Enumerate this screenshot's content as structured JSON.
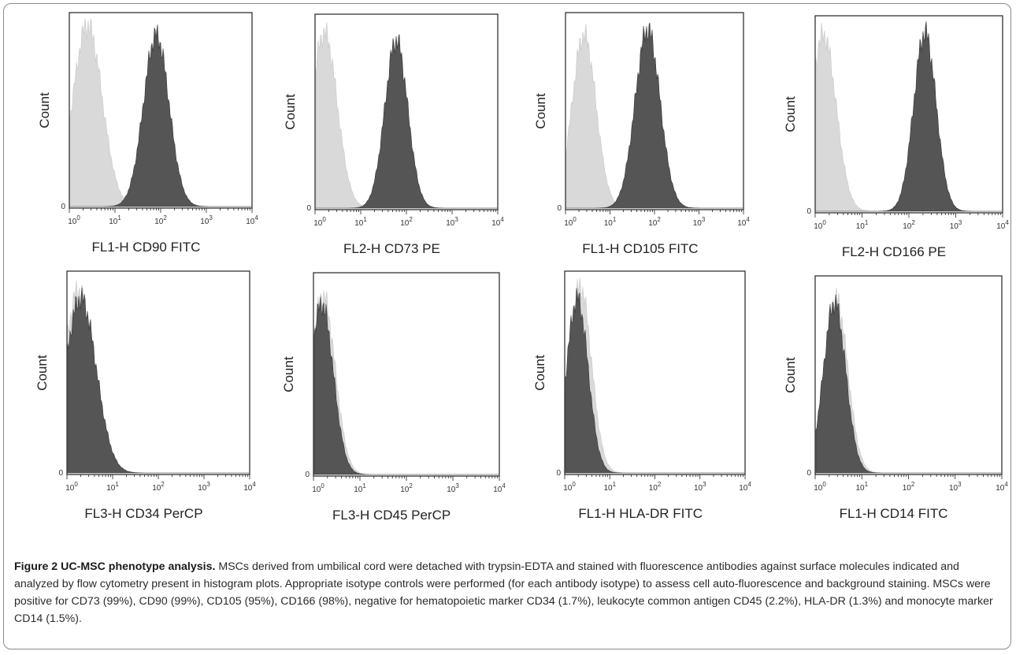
{
  "chart_data": [
    {
      "type": "area",
      "ylabel": "Count",
      "xlabel_channel": "FL1-H",
      "xlabel_marker": "CD90 FITC",
      "xscale": "log",
      "xlim": [
        1,
        10000
      ],
      "xticks": [
        "10^0",
        "10^1",
        "10^2",
        "10^3",
        "10^4"
      ],
      "ytick": "0",
      "series": [
        {
          "role": "isotype",
          "color": "#d9d9d9",
          "peak_x": 2.5,
          "width_decades": 0.32,
          "peak_height": 0.95
        },
        {
          "role": "stained",
          "color": "#555555",
          "peak_x": 80,
          "width_decades": 0.28,
          "peak_height": 0.9
        }
      ]
    },
    {
      "type": "area",
      "ylabel": "Count",
      "xlabel_channel": "FL2-H",
      "xlabel_marker": "CD73 PE",
      "xscale": "log",
      "xlim": [
        1,
        10000
      ],
      "xticks": [
        "10^0",
        "10^1",
        "10^2",
        "10^3",
        "10^4"
      ],
      "ytick": "0",
      "series": [
        {
          "role": "isotype",
          "color": "#d9d9d9",
          "peak_x": 1.6,
          "width_decades": 0.28,
          "peak_height": 0.92
        },
        {
          "role": "stained",
          "color": "#555555",
          "peak_x": 60,
          "width_decades": 0.25,
          "peak_height": 0.88
        }
      ]
    },
    {
      "type": "area",
      "ylabel": "Count",
      "xlabel_channel": "FL1-H",
      "xlabel_marker": "CD105 FITC",
      "xscale": "log",
      "xlim": [
        1,
        10000
      ],
      "xticks": [
        "10^0",
        "10^1",
        "10^2",
        "10^3",
        "10^4"
      ],
      "ytick": "0",
      "series": [
        {
          "role": "isotype",
          "color": "#d9d9d9",
          "peak_x": 2.6,
          "width_decades": 0.27,
          "peak_height": 0.9
        },
        {
          "role": "stained",
          "color": "#555555",
          "peak_x": 70,
          "width_decades": 0.28,
          "peak_height": 0.93
        }
      ]
    },
    {
      "type": "area",
      "ylabel": "Count",
      "xlabel_channel": "FL2-H",
      "xlabel_marker": "CD166 PE",
      "xscale": "log",
      "xlim": [
        1,
        10000
      ],
      "xticks": [
        "10^0",
        "10^1",
        "10^2",
        "10^3",
        "10^4"
      ],
      "ytick": "0",
      "series": [
        {
          "role": "isotype",
          "color": "#d9d9d9",
          "peak_x": 1.5,
          "width_decades": 0.27,
          "peak_height": 0.92
        },
        {
          "role": "stained",
          "color": "#555555",
          "peak_x": 220,
          "width_decades": 0.24,
          "peak_height": 0.93
        }
      ]
    },
    {
      "type": "area",
      "ylabel": "Count",
      "xlabel_channel": "FL3-H",
      "xlabel_marker": "CD34 PerCP",
      "xscale": "log",
      "xlim": [
        1,
        10000
      ],
      "xticks": [
        "10^0",
        "10^1",
        "10^2",
        "10^3",
        "10^4"
      ],
      "ytick": "0",
      "series": [
        {
          "role": "isotype",
          "color": "#d9d9d9",
          "peak_x": 1.8,
          "width_decades": 0.32,
          "peak_height": 0.92
        },
        {
          "role": "stained",
          "color": "#555555",
          "peak_x": 2.0,
          "width_decades": 0.34,
          "peak_height": 0.88
        }
      ]
    },
    {
      "type": "area",
      "ylabel": "Count",
      "xlabel_channel": "FL3-H",
      "xlabel_marker": "CD45 PerCP",
      "xscale": "log",
      "xlim": [
        1,
        10000
      ],
      "xticks": [
        "10^0",
        "10^1",
        "10^2",
        "10^3",
        "10^4"
      ],
      "ytick": "0",
      "series": [
        {
          "role": "isotype",
          "color": "#d9d9d9",
          "peak_x": 1.6,
          "width_decades": 0.26,
          "peak_height": 0.9
        },
        {
          "role": "stained",
          "color": "#555555",
          "peak_x": 1.5,
          "width_decades": 0.25,
          "peak_height": 0.86
        }
      ]
    },
    {
      "type": "area",
      "ylabel": "Count",
      "xlabel_channel": "FL1-H",
      "xlabel_marker": "HLA-DR FITC",
      "xscale": "log",
      "xlim": [
        1,
        10000
      ],
      "xticks": [
        "10^0",
        "10^1",
        "10^2",
        "10^3",
        "10^4"
      ],
      "ytick": "0",
      "series": [
        {
          "role": "isotype",
          "color": "#d9d9d9",
          "peak_x": 2.2,
          "width_decades": 0.25,
          "peak_height": 0.94
        },
        {
          "role": "stained",
          "color": "#555555",
          "peak_x": 1.9,
          "width_decades": 0.24,
          "peak_height": 0.88
        }
      ]
    },
    {
      "type": "area",
      "ylabel": "Count",
      "xlabel_channel": "FL1-H",
      "xlabel_marker": "CD14 FITC",
      "xscale": "log",
      "xlim": [
        1,
        10000
      ],
      "xticks": [
        "10^0",
        "10^1",
        "10^2",
        "10^3",
        "10^4"
      ],
      "ytick": "0",
      "series": [
        {
          "role": "isotype",
          "color": "#d9d9d9",
          "peak_x": 2.8,
          "width_decades": 0.25,
          "peak_height": 0.9
        },
        {
          "role": "stained",
          "color": "#555555",
          "peak_x": 2.6,
          "width_decades": 0.24,
          "peak_height": 0.88
        }
      ]
    }
  ],
  "caption": {
    "title": "Figure 2 UC-MSC phenotype analysis.",
    "text": "MSCs derived from umbilical cord were detached with trypsin-EDTA and stained with fluorescence antibodies against surface molecules indicated and analyzed by flow cytometry present in histogram plots. Appropriate isotype controls were performed (for each antibody isotype) to assess cell auto-fluorescence and background staining. MSCs were positive for CD73 (99%), CD90 (99%), CD105 (95%), CD166 (98%), negative for hematopoietic marker CD34 (1.7%), leukocyte common antigen CD45 (2.2%), HLA-DR (1.3%) and monocyte marker CD14 (1.5%)."
  }
}
